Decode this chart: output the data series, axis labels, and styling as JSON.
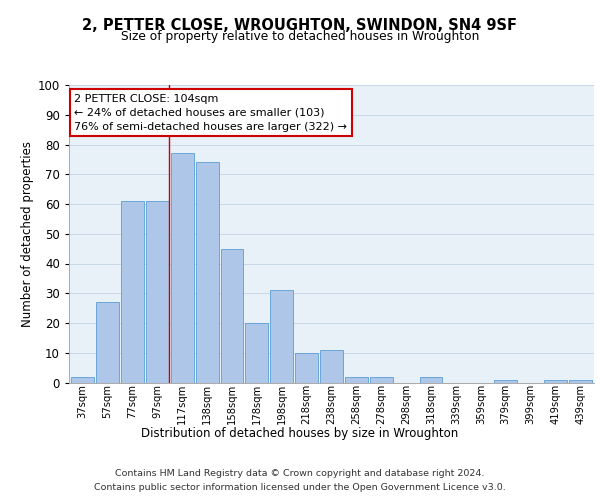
{
  "title": "2, PETTER CLOSE, WROUGHTON, SWINDON, SN4 9SF",
  "subtitle": "Size of property relative to detached houses in Wroughton",
  "xlabel": "Distribution of detached houses by size in Wroughton",
  "ylabel": "Number of detached properties",
  "bin_labels": [
    "37sqm",
    "57sqm",
    "77sqm",
    "97sqm",
    "117sqm",
    "138sqm",
    "158sqm",
    "178sqm",
    "198sqm",
    "218sqm",
    "238sqm",
    "258sqm",
    "278sqm",
    "298sqm",
    "318sqm",
    "339sqm",
    "359sqm",
    "379sqm",
    "399sqm",
    "419sqm",
    "439sqm"
  ],
  "bin_values": [
    2,
    27,
    61,
    61,
    77,
    74,
    45,
    20,
    31,
    10,
    11,
    2,
    2,
    0,
    2,
    0,
    0,
    1,
    0,
    1,
    1
  ],
  "bar_color": "#aec6e8",
  "bar_edge_color": "#5a9fd4",
  "grid_color": "#c8d8e8",
  "bg_color": "#e8f0f8",
  "annotation_text": "2 PETTER CLOSE: 104sqm\n← 24% of detached houses are smaller (103)\n76% of semi-detached houses are larger (322) →",
  "annotation_box_color": "#ffffff",
  "annotation_box_edge": "#cc0000",
  "red_line_x": 3.45,
  "ylim": [
    0,
    100
  ],
  "yticks": [
    0,
    10,
    20,
    30,
    40,
    50,
    60,
    70,
    80,
    90,
    100
  ],
  "footer_line1": "Contains HM Land Registry data © Crown copyright and database right 2024.",
  "footer_line2": "Contains public sector information licensed under the Open Government Licence v3.0."
}
